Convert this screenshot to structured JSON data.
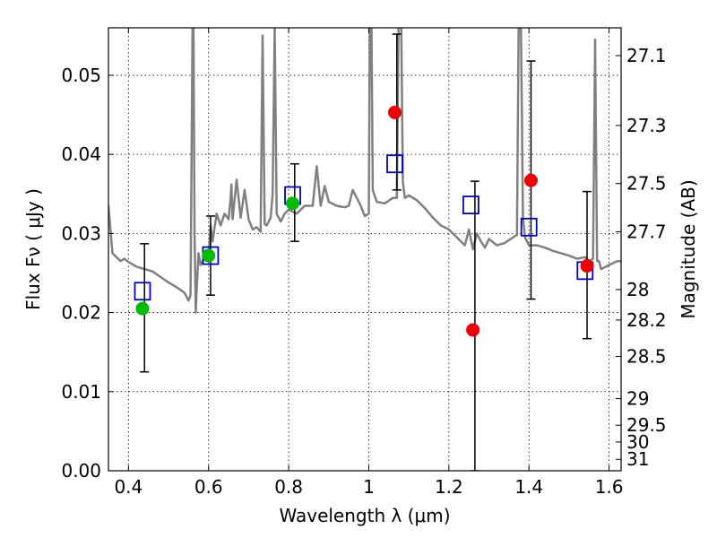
{
  "chart_data": {
    "type": "scatter",
    "title": "",
    "xlabel": "Wavelength  λ (μm)",
    "ylabel": "Flux  Fν  ( μJy )",
    "ylabel_right": "Magnitude (AB)",
    "xlim": [
      0.35,
      1.63
    ],
    "ylim": [
      0.0,
      0.056
    ],
    "grid": true,
    "x_ticks": [
      0.4,
      0.6,
      0.8,
      1.0,
      1.2,
      1.4,
      1.6
    ],
    "x_tick_labels": [
      "0.4",
      "0.6",
      "0.8",
      "1",
      "1.2",
      "1.4",
      "1.6"
    ],
    "y_ticks": [
      0.0,
      0.01,
      0.02,
      0.03,
      0.04,
      0.05
    ],
    "y_tick_labels": [
      "0.00",
      "0.01",
      "0.02",
      "0.03",
      "0.04",
      "0.05"
    ],
    "right_ticks": [
      27.1,
      27.3,
      27.5,
      27.7,
      28,
      28.2,
      28.5,
      29,
      29.5,
      30,
      31
    ],
    "right_tick_labels": [
      "27.1",
      "27.3",
      "27.5",
      "27.7",
      "28",
      "28.2",
      "28.5",
      "29",
      "29.5",
      "30",
      "31"
    ],
    "colors": {
      "model": "#808080",
      "green": "#00bb00",
      "red": "#ee0000",
      "square": "#0000cc",
      "errorbar": "#000000"
    },
    "model_spectrum": {
      "x": [
        0.35,
        0.355,
        0.36,
        0.37,
        0.38,
        0.39,
        0.4,
        0.42,
        0.44,
        0.46,
        0.48,
        0.5,
        0.52,
        0.54,
        0.55,
        0.555,
        0.56,
        0.562,
        0.565,
        0.568,
        0.57,
        0.575,
        0.58,
        0.59,
        0.6,
        0.605,
        0.61,
        0.62,
        0.63,
        0.64,
        0.65,
        0.655,
        0.657,
        0.66,
        0.67,
        0.68,
        0.69,
        0.7,
        0.71,
        0.72,
        0.73,
        0.735,
        0.74,
        0.745,
        0.75,
        0.755,
        0.76,
        0.765,
        0.77,
        0.78,
        0.79,
        0.8,
        0.82,
        0.84,
        0.86,
        0.87,
        0.88,
        0.89,
        0.9,
        0.92,
        0.94,
        0.95,
        0.96,
        0.98,
        0.99,
        1.0,
        1.003,
        1.006,
        1.01,
        1.02,
        1.04,
        1.06,
        1.07,
        1.075,
        1.08,
        1.085,
        1.09,
        1.1,
        1.12,
        1.14,
        1.16,
        1.18,
        1.2,
        1.22,
        1.24,
        1.25,
        1.26,
        1.27,
        1.28,
        1.29,
        1.3,
        1.32,
        1.34,
        1.36,
        1.37,
        1.375,
        1.38,
        1.385,
        1.39,
        1.4,
        1.42,
        1.44,
        1.46,
        1.48,
        1.5,
        1.52,
        1.54,
        1.55,
        1.56,
        1.565,
        1.57,
        1.575,
        1.58,
        1.6,
        1.62,
        1.63
      ],
      "y": [
        0.0335,
        0.0305,
        0.0275,
        0.027,
        0.0265,
        0.0268,
        0.0264,
        0.0258,
        0.0255,
        0.0252,
        0.0245,
        0.0238,
        0.0232,
        0.0225,
        0.0215,
        0.0222,
        0.056,
        0.06,
        0.03,
        0.02,
        0.0225,
        0.0275,
        0.026,
        0.027,
        0.0272,
        0.031,
        0.029,
        0.0325,
        0.031,
        0.0325,
        0.0318,
        0.0345,
        0.0362,
        0.0318,
        0.0368,
        0.032,
        0.0355,
        0.0318,
        0.0305,
        0.0308,
        0.0302,
        0.055,
        0.0312,
        0.031,
        0.0315,
        0.032,
        0.035,
        0.056,
        0.0325,
        0.0315,
        0.0325,
        0.033,
        0.0325,
        0.0335,
        0.0335,
        0.0385,
        0.0335,
        0.036,
        0.034,
        0.0335,
        0.0333,
        0.0335,
        0.0355,
        0.0335,
        0.0322,
        0.0325,
        0.06,
        0.0605,
        0.0355,
        0.034,
        0.0338,
        0.0345,
        0.0345,
        0.0605,
        0.0615,
        0.0365,
        0.0345,
        0.0348,
        0.0342,
        0.0332,
        0.032,
        0.031,
        0.0305,
        0.0295,
        0.0285,
        0.0305,
        0.028,
        0.03,
        0.029,
        0.0282,
        0.0293,
        0.0285,
        0.0288,
        0.0295,
        0.0298,
        0.06,
        0.056,
        0.032,
        0.0295,
        0.0285,
        0.0285,
        0.0282,
        0.0278,
        0.0275,
        0.0272,
        0.0268,
        0.027,
        0.0265,
        0.0268,
        0.0545,
        0.0265,
        0.0265,
        0.0255,
        0.026,
        0.0265,
        0.0265
      ]
    },
    "green_points": {
      "x": [
        0.435,
        0.6,
        0.81
      ],
      "y": [
        0.0205,
        0.0272,
        0.0338
      ]
    },
    "red_points": {
      "x": [
        1.065,
        1.26,
        1.405,
        1.545
      ],
      "y": [
        0.0453,
        0.0178,
        0.0367,
        0.0259
      ]
    },
    "squares": {
      "x": [
        0.435,
        0.605,
        0.81,
        1.065,
        1.255,
        1.4,
        1.54
      ],
      "y": [
        0.0227,
        0.0272,
        0.0348,
        0.0388,
        0.0336,
        0.0308,
        0.0253
      ]
    },
    "errorbars": [
      {
        "x": 0.44,
        "low": 0.0125,
        "high": 0.0287
      },
      {
        "x": 0.605,
        "low": 0.0222,
        "high": 0.0322
      },
      {
        "x": 0.815,
        "low": 0.029,
        "high": 0.0388
      },
      {
        "x": 1.07,
        "low": 0.0355,
        "high": 0.0552
      },
      {
        "x": 1.265,
        "low": 0.0,
        "high": 0.0366
      },
      {
        "x": 1.405,
        "low": 0.0217,
        "high": 0.0518
      },
      {
        "x": 1.545,
        "low": 0.0167,
        "high": 0.0353
      }
    ]
  }
}
